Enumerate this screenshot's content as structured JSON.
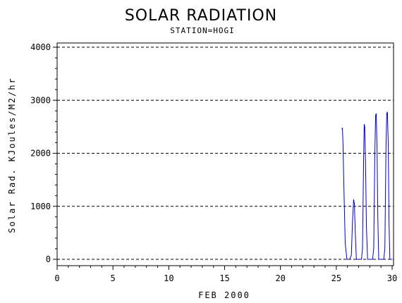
{
  "chart_data": {
    "type": "line",
    "title": "SOLAR RADIATION",
    "subtitle": "STATION=HOGI",
    "xlabel": "FEB 2000",
    "ylabel": "Solar Rad. KJoules/M2/hr",
    "xlim": [
      0,
      30
    ],
    "ylim": [
      0,
      4000
    ],
    "x_ticks": [
      0,
      5,
      10,
      15,
      20,
      25,
      30
    ],
    "y_ticks": [
      0,
      1000,
      2000,
      3000,
      4000
    ],
    "grid": "horizontal-dashed",
    "colors": {
      "line": "#0000cc",
      "axis": "#000000",
      "grid": "#000000"
    },
    "series": [
      {
        "x": [
          25.5,
          25.55,
          25.6,
          25.7,
          25.8,
          25.95,
          26.1,
          26.2,
          26.35,
          26.45,
          26.55,
          26.62,
          26.7,
          26.8,
          26.95,
          27.1,
          27.25,
          27.35,
          27.45,
          27.5,
          27.55,
          27.62,
          27.7,
          27.8,
          27.95,
          28.1,
          28.25,
          28.35,
          28.45,
          28.52,
          28.58,
          28.65,
          28.72,
          28.8,
          28.95,
          29.1,
          29.25,
          29.35,
          29.45,
          29.52,
          29.58,
          29.65,
          29.72,
          29.8,
          30.0
        ],
        "y": [
          2450,
          2480,
          2200,
          1200,
          300,
          0,
          0,
          0,
          80,
          700,
          1130,
          1050,
          500,
          0,
          0,
          0,
          0,
          200,
          1900,
          2550,
          2500,
          1800,
          600,
          0,
          0,
          0,
          0,
          200,
          2000,
          2720,
          2750,
          2100,
          800,
          0,
          0,
          0,
          0,
          200,
          2100,
          2750,
          2780,
          2200,
          700,
          0,
          0
        ]
      }
    ]
  }
}
